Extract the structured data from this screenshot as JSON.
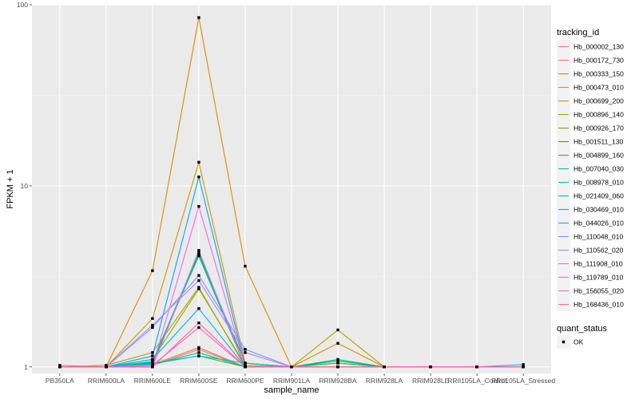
{
  "chart_data": {
    "type": "line",
    "xlabel": "sample_name",
    "ylabel": "FPKM + 1",
    "y_scale": "log10",
    "ylim": [
      0.92,
      100
    ],
    "y_ticks": [
      1,
      10,
      100
    ],
    "y_tick_labels": [
      "1",
      "10",
      "100"
    ],
    "grid": true,
    "legend_placement": "right",
    "categories": [
      "PB350LA",
      "RRIM600LA",
      "RRIM600LE",
      "RRIM600SE",
      "RRIM600PE",
      "RRIM901LA",
      "RRIM928BA",
      "RRIM928LA",
      "RRIM928LE",
      "RRII105LA_Control",
      "RRII105LA_Stressed"
    ],
    "series": [
      {
        "name": "Hb_000002_130",
        "color": "#F8766D",
        "values": [
          1.0,
          1.0,
          1.02,
          1.25,
          1.0,
          1.0,
          1.0,
          1.0,
          1.0,
          1.0,
          1.0
        ]
      },
      {
        "name": "Hb_000172_730",
        "color": "#EE8043",
        "values": [
          1.02,
          1.0,
          1.03,
          1.28,
          1.0,
          1.0,
          1.0,
          1.0,
          1.0,
          1.0,
          1.0
        ]
      },
      {
        "name": "Hb_000333_150",
        "color": "#DE8C00",
        "values": [
          1.0,
          1.0,
          3.4,
          85,
          3.6,
          1.0,
          1.35,
          1.0,
          1.0,
          1.0,
          1.0
        ]
      },
      {
        "name": "Hb_000473_010",
        "color": "#C99800",
        "values": [
          1.0,
          1.0,
          1.85,
          13.5,
          1.05,
          1.0,
          1.0,
          1.0,
          1.0,
          1.0,
          1.0
        ]
      },
      {
        "name": "Hb_000699_200",
        "color": "#AFA100",
        "values": [
          1.0,
          1.02,
          1.2,
          2.75,
          1.0,
          1.0,
          1.6,
          1.0,
          1.0,
          1.0,
          1.0
        ]
      },
      {
        "name": "Hb_000896_140",
        "color": "#8EAB00",
        "values": [
          1.0,
          1.0,
          1.1,
          2.7,
          1.02,
          1.0,
          1.05,
          1.0,
          1.0,
          1.0,
          1.0
        ]
      },
      {
        "name": "Hb_000926_170",
        "color": "#5BB300",
        "values": [
          1.0,
          1.0,
          1.05,
          1.15,
          1.0,
          1.0,
          1.0,
          1.0,
          1.0,
          1.0,
          1.0
        ]
      },
      {
        "name": "Hb_001511_130",
        "color": "#00BA38",
        "values": [
          1.0,
          1.0,
          1.04,
          4.2,
          1.05,
          1.0,
          1.08,
          1.0,
          1.0,
          1.0,
          1.0
        ]
      },
      {
        "name": "Hb_004899_160",
        "color": "#00BE6C",
        "values": [
          1.0,
          1.0,
          1.06,
          4.3,
          1.0,
          1.0,
          1.05,
          1.0,
          1.0,
          1.0,
          1.0
        ]
      },
      {
        "name": "Hb_007040_030",
        "color": "#00C094",
        "values": [
          1.0,
          1.0,
          1.07,
          4.1,
          1.0,
          1.0,
          1.1,
          1.0,
          1.0,
          1.0,
          1.0
        ]
      },
      {
        "name": "Hb_008978_010",
        "color": "#00C0B5",
        "values": [
          1.0,
          1.0,
          1.03,
          1.2,
          1.0,
          1.0,
          1.0,
          1.0,
          1.0,
          1.0,
          1.0
        ]
      },
      {
        "name": "Hb_021409_060",
        "color": "#00BDD0",
        "values": [
          1.0,
          1.0,
          1.04,
          1.15,
          1.05,
          1.0,
          1.0,
          1.0,
          1.0,
          1.0,
          1.03
        ]
      },
      {
        "name": "Hb_030469_010",
        "color": "#00B4EF",
        "values": [
          1.0,
          1.0,
          1.1,
          2.1,
          1.0,
          1.0,
          1.0,
          1.0,
          1.0,
          1.0,
          1.0
        ]
      },
      {
        "name": "Hb_044026_010",
        "color": "#00A5FF",
        "values": [
          1.0,
          1.0,
          1.15,
          11.2,
          1.0,
          1.0,
          1.0,
          1.0,
          1.0,
          1.0,
          1.0
        ]
      },
      {
        "name": "Hb_110048_010",
        "color": "#7997FF",
        "values": [
          1.0,
          1.0,
          1.65,
          3.2,
          1.25,
          1.0,
          1.0,
          1.0,
          1.0,
          1.0,
          1.0
        ]
      },
      {
        "name": "Hb_110562_020",
        "color": "#B383FF",
        "values": [
          1.0,
          1.0,
          1.7,
          3.0,
          1.2,
          1.0,
          1.0,
          1.0,
          1.0,
          1.0,
          1.0
        ]
      },
      {
        "name": "Hb_111908_010",
        "color": "#D874FD",
        "values": [
          1.0,
          1.0,
          1.0,
          4.4,
          1.0,
          1.0,
          1.0,
          1.0,
          1.0,
          1.0,
          1.0
        ]
      },
      {
        "name": "Hb_119789_010",
        "color": "#EF67EB",
        "values": [
          1.0,
          1.0,
          1.0,
          7.7,
          1.0,
          1.0,
          1.0,
          1.0,
          1.0,
          1.0,
          1.0
        ]
      },
      {
        "name": "Hb_156055_020",
        "color": "#FE61CF",
        "values": [
          1.0,
          1.0,
          1.02,
          1.65,
          1.0,
          1.0,
          1.0,
          1.0,
          1.0,
          1.0,
          1.0
        ]
      },
      {
        "name": "Hb_168436_010",
        "color": "#FF66A8",
        "values": [
          1.0,
          1.0,
          1.0,
          1.75,
          1.0,
          1.0,
          1.0,
          1.0,
          1.0,
          1.0,
          1.0
        ]
      }
    ],
    "legend_title": "tracking_id",
    "point_legend_title": "quant_status",
    "point_legend_items": [
      "OK"
    ],
    "colors": {
      "panel_bg": "#EBEBEB",
      "grid_major": "#FFFFFF",
      "grid_minor": "#F4F4F4",
      "legend_key_bg": "#F2F2F2",
      "point": "#000000"
    }
  }
}
